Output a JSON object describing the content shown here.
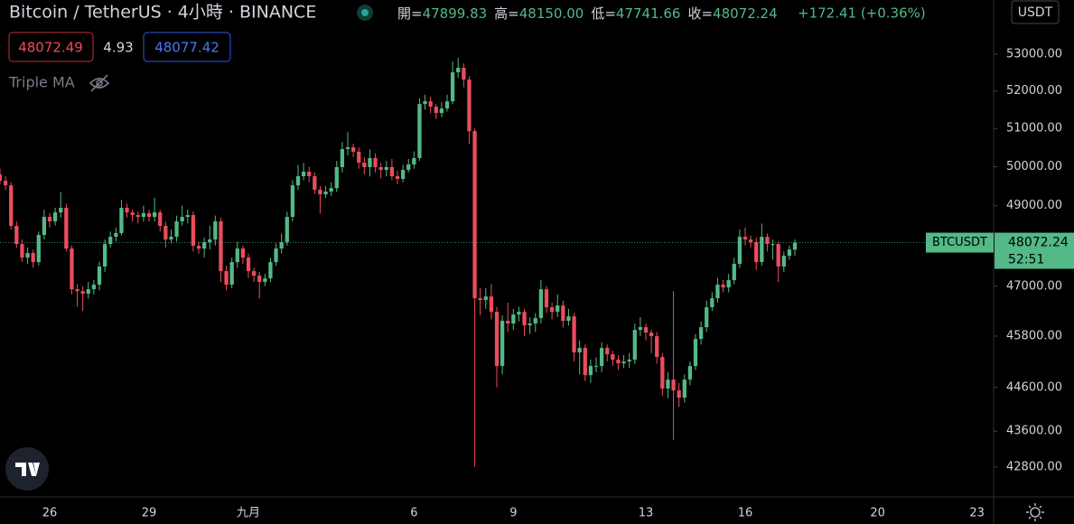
{
  "header": {
    "title": "Bitcoin / TetherUS · 4小時 · BINANCE",
    "ohlc": [
      {
        "label": "開=",
        "value": "47899.83"
      },
      {
        "label": "高=",
        "value": "48150.00"
      },
      {
        "label": "低=",
        "value": "47741.66"
      },
      {
        "label": "收=",
        "value": "48072.24"
      }
    ],
    "change": "+172.41 (+0.36%)",
    "bid": "48072.49",
    "spread": "4.93",
    "ask": "48077.42",
    "indicator": "Triple MA",
    "currency": "USDT"
  },
  "chart_data": {
    "type": "candlestick",
    "name": "BTCUSDT",
    "open": [
      49800,
      49638,
      49520,
      48490,
      48038,
      47700,
      47813,
      47590,
      48263,
      48717,
      48605,
      48830,
      48946,
      47925,
      46926,
      46882,
      46816,
      46926,
      47036,
      47480,
      48038,
      48218,
      48310,
      48946,
      48830,
      48763,
      48717,
      48810,
      48717,
      48830,
      48490,
      48150,
      48218,
      48605,
      48717,
      48763,
      47993,
      47925,
      48083,
      48150,
      48605,
      47368,
      47036,
      47590,
      47925,
      47700,
      47368,
      47258,
      47103,
      47190,
      47590,
      47925,
      48083,
      48717,
      49520,
      49755,
      49871,
      49755,
      49406,
      49290,
      49360,
      49450,
      49990,
      50460,
      50505,
      50390,
      50105,
      49990,
      50225,
      49990,
      49920,
      49990,
      49755,
      49685,
      49920,
      50060,
      50225,
      51650,
      51725,
      51580,
      51410,
      51532,
      51725,
      52506,
      52630,
      52310,
      50930,
      46707,
      46663,
      46750,
      46380,
      45096,
      46164,
      46100,
      46315,
      46380,
      46056,
      46100,
      46229,
      46926,
      46489,
      46380,
      46533,
      46164,
      46272,
      45414,
      45520,
      44885,
      45096,
      45096,
      45520,
      45371,
      45244,
      45159,
      45201,
      45244,
      45948,
      46013,
      45884,
      45798,
      45308,
      44571,
      44780,
      44530,
      44363,
      44780,
      45096,
      45734,
      46013,
      46489,
      46707,
      47036,
      46970,
      47147,
      47546,
      48218,
      48150,
      48083,
      47590,
      48218,
      48038,
      48038,
      47480,
      47746,
      47899.83
    ],
    "high": [
      49950,
      49760,
      49600,
      48600,
      48150,
      47950,
      47900,
      48350,
      48900,
      48820,
      48950,
      49350,
      49050,
      48000,
      47050,
      47000,
      47100,
      47150,
      47600,
      48150,
      48350,
      48450,
      49150,
      49050,
      48900,
      48850,
      49000,
      48900,
      49200,
      48900,
      48600,
      48400,
      48750,
      49000,
      48900,
      48850,
      48100,
      48200,
      48500,
      48750,
      48700,
      47500,
      47700,
      48100,
      48000,
      47800,
      47450,
      47350,
      47300,
      47700,
      48050,
      48300,
      48850,
      49650,
      50050,
      50100,
      50000,
      49850,
      49500,
      49500,
      49600,
      50150,
      50650,
      50900,
      50600,
      50500,
      50250,
      50450,
      50350,
      50100,
      50150,
      50200,
      49900,
      50050,
      50200,
      50400,
      51800,
      51900,
      51850,
      51650,
      51700,
      51900,
      52800,
      52900,
      52750,
      52400,
      51000,
      46950,
      46950,
      47050,
      46500,
      46300,
      46600,
      46450,
      46500,
      46450,
      46250,
      46350,
      47150,
      47000,
      46600,
      46800,
      46650,
      46450,
      46350,
      45700,
      45600,
      45250,
      45300,
      45650,
      45600,
      45450,
      45350,
      45350,
      45400,
      46100,
      46250,
      46100,
      45950,
      45900,
      45400,
      44950,
      46880,
      44700,
      44900,
      45200,
      45850,
      46150,
      46650,
      46850,
      47200,
      47150,
      47300,
      47700,
      48400,
      48450,
      48250,
      48200,
      48550,
      48300,
      48150,
      48100,
      47850,
      48000,
      48150
    ],
    "low": [
      49550,
      49400,
      48400,
      47950,
      47600,
      47550,
      47450,
      47500,
      48150,
      48450,
      48500,
      48700,
      47850,
      46800,
      46500,
      46400,
      46700,
      46800,
      46900,
      47350,
      47950,
      48100,
      48250,
      48700,
      48600,
      48550,
      48600,
      48600,
      48600,
      48350,
      47950,
      48050,
      48100,
      48500,
      48550,
      47850,
      47800,
      47700,
      47900,
      48000,
      47100,
      46900,
      46950,
      47450,
      47550,
      47200,
      47100,
      46700,
      47000,
      47100,
      47500,
      47800,
      48000,
      48600,
      49400,
      49650,
      49600,
      49300,
      48800,
      49200,
      49250,
      49350,
      49850,
      50300,
      50250,
      49950,
      49800,
      49750,
      49850,
      49700,
      49750,
      49650,
      49550,
      49600,
      49850,
      49950,
      50150,
      51500,
      51400,
      51250,
      51300,
      51450,
      51650,
      52350,
      52100,
      50600,
      42800,
      46300,
      46450,
      46200,
      44600,
      44900,
      45900,
      45950,
      46150,
      45800,
      45850,
      45900,
      46100,
      46350,
      46200,
      46250,
      46000,
      46050,
      45200,
      44900,
      44750,
      44700,
      44950,
      44950,
      45200,
      45100,
      45000,
      45050,
      45050,
      45150,
      45800,
      45700,
      45400,
      45150,
      44400,
      44350,
      43400,
      44150,
      44250,
      44650,
      45000,
      45600,
      45900,
      46400,
      46600,
      46850,
      46850,
      47050,
      47450,
      48000,
      47950,
      47400,
      47500,
      47850,
      47650,
      47100,
      47350,
      47650,
      47741.66
    ],
    "close": [
      49638,
      49520,
      48490,
      48038,
      47700,
      47813,
      47590,
      48263,
      48717,
      48605,
      48830,
      48946,
      47925,
      46926,
      46882,
      46816,
      46926,
      47036,
      47480,
      48038,
      48218,
      48310,
      48946,
      48830,
      48763,
      48717,
      48810,
      48717,
      48830,
      48490,
      48150,
      48218,
      48605,
      48717,
      48763,
      47993,
      47925,
      48083,
      48150,
      48605,
      47368,
      47036,
      47590,
      47925,
      47700,
      47368,
      47258,
      47103,
      47190,
      47590,
      47925,
      48083,
      48717,
      49520,
      49755,
      49871,
      49755,
      49406,
      49290,
      49360,
      49450,
      49990,
      50460,
      50505,
      50390,
      50105,
      49990,
      50225,
      49990,
      49920,
      49990,
      49755,
      49685,
      49920,
      50060,
      50225,
      51650,
      51725,
      51580,
      51410,
      51532,
      51725,
      52506,
      52630,
      52310,
      50930,
      46707,
      46663,
      46750,
      46380,
      45096,
      46164,
      46100,
      46315,
      46380,
      46056,
      46100,
      46229,
      46926,
      46489,
      46380,
      46533,
      46164,
      46272,
      45414,
      45520,
      44885,
      45096,
      45096,
      45520,
      45371,
      45244,
      45159,
      45201,
      45244,
      45948,
      46013,
      45884,
      45798,
      45308,
      44571,
      44780,
      44530,
      44363,
      44780,
      45096,
      45734,
      46013,
      46489,
      46707,
      47036,
      46970,
      47147,
      47546,
      48218,
      48150,
      48083,
      47590,
      48218,
      48038,
      48038,
      47480,
      47746,
      47900,
      48072.24
    ],
    "up_color": "#53b987",
    "down_color": "#eb4d5c",
    "log": true,
    "grid": false,
    "ylim": [
      42140,
      54510
    ],
    "yticks": [
      {
        "value": 53000,
        "label": "53000.00"
      },
      {
        "value": 52000,
        "label": "52000.00"
      },
      {
        "value": 51000,
        "label": "51000.00"
      },
      {
        "value": 50000,
        "label": "50000.00"
      },
      {
        "value": 49000,
        "label": "49000.00"
      },
      {
        "value": 47000,
        "label": "47000.00"
      },
      {
        "value": 45800,
        "label": "45800.00"
      },
      {
        "value": 44600,
        "label": "44600.00"
      },
      {
        "value": 43600,
        "label": "43600.00"
      },
      {
        "value": 42800,
        "label": "42800.00"
      }
    ],
    "xlim": [
      0,
      180
    ],
    "xticks": [
      {
        "value": 9,
        "label": "26"
      },
      {
        "value": 27,
        "label": "29"
      },
      {
        "value": 45,
        "label": "九月"
      },
      {
        "value": 75,
        "label": "6"
      },
      {
        "value": 93,
        "label": "9"
      },
      {
        "value": 117,
        "label": "13"
      },
      {
        "value": 135,
        "label": "16"
      },
      {
        "value": 159,
        "label": "20"
      },
      {
        "value": 177,
        "label": "23"
      }
    ],
    "countdown": "52:51"
  }
}
